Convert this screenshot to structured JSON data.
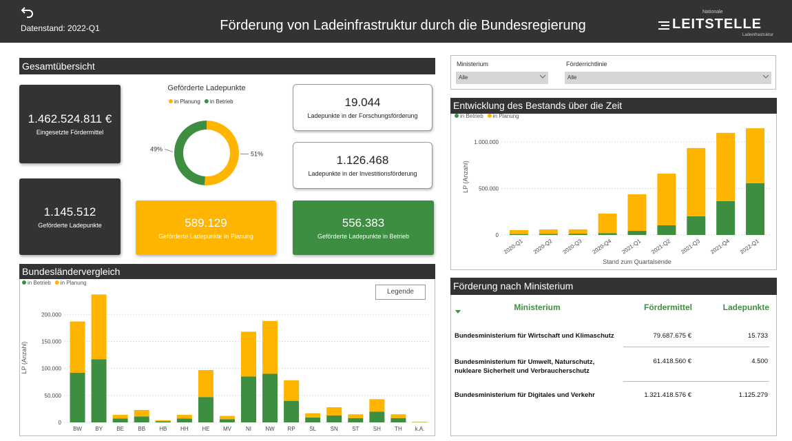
{
  "header": {
    "date": "Datenstand: 2022-Q1",
    "title": "Förderung von Ladeinfrastruktur durch die Bundesregierung",
    "logo_top": "Nationale",
    "logo": "LEITSTELLE",
    "logo_sub": "Ladeinfrastruktur"
  },
  "overview": {
    "title": "Gesamtübersicht",
    "funding": {
      "value": "1.462.524.811 €",
      "label": "Eingesetzte Fördermittel"
    },
    "points": {
      "value": "1.145.512",
      "label": "Geförderte Ladepunkte"
    },
    "research": {
      "value": "19.044",
      "label": "Ladepunkte in der Forschungsförderung"
    },
    "investment": {
      "value": "1.126.468",
      "label": "Ladepunkte in der Investitionsförderung"
    },
    "planned": {
      "value": "589.129",
      "label": "Geförderte Ladepunkte in Planung"
    },
    "operating": {
      "value": "556.383",
      "label": "Geförderte Ladepunkte in Betrieb"
    }
  },
  "filters": [
    {
      "label": "Ministerium",
      "value": "Alle"
    },
    {
      "label": "Förderrichtlinie",
      "value": "Alle"
    }
  ],
  "legend_button": "Legende",
  "table": {
    "title": "Förderung nach Ministerium",
    "columns": [
      "Ministerium",
      "Fördermittel",
      "Ladepunkte"
    ],
    "rows": [
      [
        "Bundesministerium für Wirtschaft und Klimaschutz",
        "79.687.675 €",
        "15.733"
      ],
      [
        "Bundesministerium für Umwelt, Naturschutz, nukleare Sicherheit und Verbraucherschutz",
        "61.418.560 €",
        "4.500"
      ],
      [
        "Bundesministerium für Digitales und Verkehr",
        "1.321.418.576 €",
        "1.125.279"
      ]
    ]
  },
  "chart_data": [
    {
      "type": "pie",
      "donut": true,
      "title": "Geförderte Ladepunkte",
      "categories": [
        "in Planung",
        "in Betrieb"
      ],
      "values": [
        51,
        49
      ],
      "value_labels": [
        "51%",
        "49%"
      ],
      "colors": [
        "#ffb400",
        "#3e8e41"
      ]
    },
    {
      "type": "bar",
      "stacked": true,
      "title": "Entwicklung des Bestands über die Zeit",
      "categories": [
        "2020-Q1",
        "2020-Q2",
        "2020-Q3",
        "2020-Q4",
        "2021-Q1",
        "2021-Q2",
        "2021-Q3",
        "2021-Q4",
        "2022-Q1"
      ],
      "series": [
        {
          "name": "in Betrieb",
          "color": "#3e8e41",
          "values": [
            10000,
            12000,
            14000,
            20000,
            44000,
            104000,
            200000,
            363000,
            556383
          ]
        },
        {
          "name": "in Planung",
          "color": "#ffb400",
          "values": [
            42000,
            47000,
            46000,
            210000,
            393000,
            555000,
            733000,
            733000,
            589129
          ]
        }
      ],
      "ylim": [
        0,
        1250000
      ],
      "yticks": [
        0,
        {
          "value": 500000,
          "label": "500.000"
        },
        {
          "value": 1000000,
          "label": "1.000.000"
        }
      ],
      "xlabel": "Stand zum Quartalsende",
      "ylabel": "LP (Anzahl)",
      "grid": true,
      "legend": "top-left"
    },
    {
      "type": "bar",
      "stacked": true,
      "title": "Bundesländervergleich",
      "categories": [
        "BW",
        "BY",
        "BE",
        "BB",
        "HB",
        "HH",
        "HE",
        "MV",
        "NI",
        "NW",
        "RP",
        "SL",
        "SN",
        "ST",
        "SH",
        "TH",
        "k.A."
      ],
      "series": [
        {
          "name": "in Betrieb",
          "color": "#3e8e41",
          "values": [
            92000,
            117000,
            7000,
            11000,
            2000,
            7000,
            47000,
            6000,
            85000,
            90000,
            40000,
            9000,
            13000,
            8000,
            20000,
            8000,
            500
          ]
        },
        {
          "name": "in Planung",
          "color": "#ffb400",
          "values": [
            95000,
            120000,
            7000,
            12000,
            2000,
            7000,
            50000,
            6000,
            83000,
            98000,
            38000,
            8000,
            15000,
            7000,
            23000,
            7000,
            500
          ]
        }
      ],
      "ylim": [
        0,
        240000
      ],
      "yticks": [
        0,
        {
          "value": 50000,
          "label": "50.000"
        },
        {
          "value": 100000,
          "label": "100.000"
        },
        {
          "value": 150000,
          "label": "150.000"
        },
        {
          "value": 200000,
          "label": "200.000"
        }
      ],
      "ylabel": "LP (Anzahl)",
      "grid": true,
      "legend": "top-left"
    }
  ]
}
